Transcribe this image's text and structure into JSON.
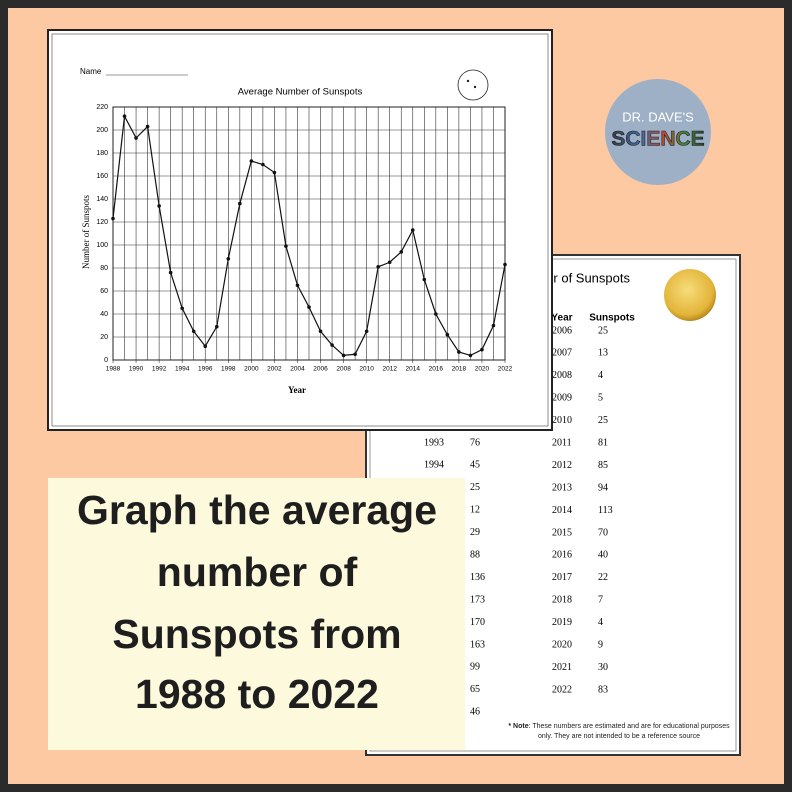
{
  "chart_data": {
    "type": "line",
    "title": "Average Number of Sunspots",
    "x_label": "Year",
    "y_label": "Number of Sunspots",
    "x": [
      1988,
      1989,
      1990,
      1991,
      1992,
      1993,
      1994,
      1995,
      1996,
      1997,
      1998,
      1999,
      2000,
      2001,
      2002,
      2003,
      2004,
      2005,
      2006,
      2007,
      2008,
      2009,
      2010,
      2011,
      2012,
      2013,
      2014,
      2015,
      2016,
      2017,
      2018,
      2019,
      2020,
      2021,
      2022
    ],
    "values": [
      123,
      212,
      193,
      203,
      134,
      76,
      45,
      25,
      12,
      29,
      88,
      136,
      173,
      170,
      163,
      99,
      65,
      46,
      25,
      13,
      4,
      5,
      25,
      81,
      85,
      94,
      113,
      70,
      40,
      22,
      7,
      4,
      9,
      30,
      83
    ],
    "color": "#111111",
    "xlim": [
      1988,
      2022
    ],
    "xticks": [
      1988,
      1990,
      1992,
      1994,
      1996,
      1998,
      2000,
      2002,
      2004,
      2006,
      2008,
      2010,
      2012,
      2014,
      2016,
      2018,
      2020,
      2022
    ],
    "ylim": [
      0,
      220
    ],
    "yticks": [
      0,
      20,
      40,
      60,
      80,
      100,
      120,
      140,
      160,
      180,
      200,
      220
    ],
    "grid": true
  },
  "worksheet": {
    "name_label": "Name"
  },
  "logo": {
    "line1": "DR. DAVE'S",
    "line2": "SCIENCE"
  },
  "table": {
    "title": "Average Number of Sunspots",
    "headers": [
      "Year",
      "Sunspots"
    ],
    "left_rows": [
      [
        1993,
        76
      ],
      [
        1994,
        45
      ],
      [
        null,
        25
      ],
      [
        null,
        12
      ],
      [
        null,
        29
      ],
      [
        null,
        88
      ],
      [
        null,
        136
      ],
      [
        null,
        173
      ],
      [
        null,
        170
      ],
      [
        null,
        163
      ],
      [
        null,
        99
      ],
      [
        null,
        65
      ],
      [
        null,
        46
      ]
    ],
    "right_rows": [
      [
        2006,
        25
      ],
      [
        2007,
        13
      ],
      [
        2008,
        4
      ],
      [
        2009,
        5
      ],
      [
        2010,
        25
      ],
      [
        2011,
        81
      ],
      [
        2012,
        85
      ],
      [
        2013,
        94
      ],
      [
        2014,
        113
      ],
      [
        2015,
        70
      ],
      [
        2016,
        40
      ],
      [
        2017,
        22
      ],
      [
        2018,
        7
      ],
      [
        2019,
        4
      ],
      [
        2020,
        9
      ],
      [
        2021,
        30
      ],
      [
        2022,
        83
      ]
    ],
    "note_label": "* Note",
    "note_text": ": These numbers are estimated and are for educational purposes only. They are not intended to be a reference source"
  },
  "caption": {
    "lines": [
      "Graph the average",
      "number of",
      "Sunspots from",
      "1988 to 2022"
    ]
  }
}
